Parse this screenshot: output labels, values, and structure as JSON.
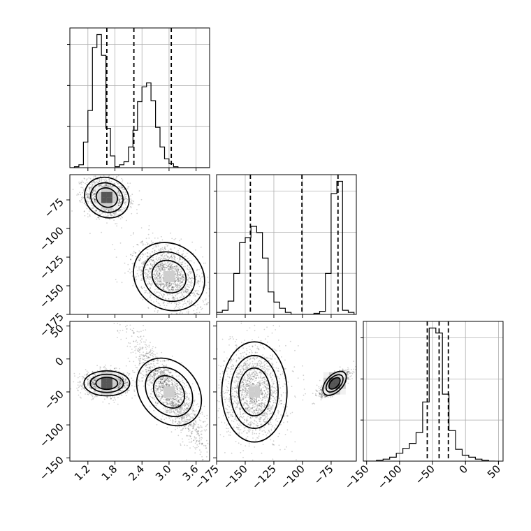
{
  "chart_data": {
    "type": "corner",
    "parameters": [
      "p0",
      "p1",
      "p2"
    ],
    "ranges": {
      "p0": [
        0.8,
        3.9
      ],
      "p1": [
        -175,
        -53
      ],
      "p2": [
        -155,
        57
      ]
    },
    "ticks": {
      "p0": [
        "1.2",
        "1.8",
        "2.4",
        "3.0",
        "3.6"
      ],
      "p1": [
        "-175",
        "-150",
        "-125",
        "-100",
        "-75"
      ],
      "p2": [
        "-150",
        "-100",
        "-50",
        "0",
        "50"
      ],
      "p2_diag": [
        "-150",
        "-100",
        "-50",
        "0",
        "50"
      ]
    },
    "marginals": {
      "p0": {
        "bin_edges": [
          0.8,
          0.9,
          1.0,
          1.1,
          1.2,
          1.3,
          1.4,
          1.5,
          1.6,
          1.7,
          1.8,
          1.9,
          2.0,
          2.1,
          2.2,
          2.3,
          2.4,
          2.5,
          2.6,
          2.7,
          2.8,
          2.9,
          3.0,
          3.1,
          3.2,
          3.3,
          3.4,
          3.5,
          3.6,
          3.7,
          3.8,
          3.9
        ],
        "counts": [
          0,
          1,
          3,
          26,
          58,
          122,
          135,
          114,
          40,
          12,
          1,
          3,
          6,
          21,
          38,
          67,
          82,
          86,
          68,
          41,
          21,
          9,
          4,
          1,
          0,
          0,
          0,
          0,
          0,
          0,
          0
        ],
        "quantiles": [
          1.62,
          2.22,
          3.05
        ]
      },
      "p1": {
        "bin_edges": [
          -175,
          -170,
          -165,
          -160,
          -155,
          -150,
          -145,
          -140,
          -135,
          -130,
          -125,
          -120,
          -115,
          -110,
          -105,
          -100,
          -95,
          -90,
          -85,
          -80,
          -75,
          -70,
          -65,
          -60,
          -55
        ],
        "counts": [
          2,
          4,
          13,
          40,
          70,
          75,
          86,
          80,
          55,
          22,
          12,
          6,
          2,
          0,
          0,
          0,
          0,
          1,
          3,
          40,
          118,
          130,
          4,
          2
        ],
        "quantiles": [
          -145.5,
          -100.5,
          -69.0
        ]
      },
      "p2": {
        "bin_edges": [
          -155,
          -145,
          -135,
          -125,
          -115,
          -105,
          -95,
          -85,
          -75,
          -65,
          -55,
          -45,
          -35,
          -25,
          -15,
          -5,
          5,
          15,
          25,
          35,
          45
        ],
        "counts": [
          0,
          0,
          1,
          2,
          4,
          8,
          13,
          18,
          29,
          60,
          135,
          130,
          68,
          31,
          12,
          6,
          4,
          2,
          1,
          0
        ],
        "quantiles": [
          -58.0,
          -40.0,
          -26.0
        ]
      }
    },
    "joint": [
      {
        "x": "p0",
        "y": "p1",
        "modes": [
          {
            "x": 1.62,
            "y": -73
          },
          {
            "x": 3.0,
            "y": -142
          }
        ]
      },
      {
        "x": "p0",
        "y": "p2",
        "modes": [
          {
            "x": 1.62,
            "y": -37
          },
          {
            "x": 3.0,
            "y": -50
          }
        ]
      },
      {
        "x": "p1",
        "y": "p2",
        "modes": [
          {
            "x": -142,
            "y": -50
          },
          {
            "x": -72,
            "y": -37
          }
        ]
      }
    ]
  }
}
